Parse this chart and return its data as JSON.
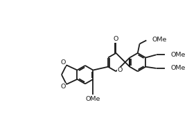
{
  "background": "#ffffff",
  "bond_color": "#1a1a1a",
  "bond_width": 1.3,
  "figsize": [
    2.83,
    1.97
  ],
  "dpi": 100,
  "xlim": [
    0,
    10
  ],
  "ylim": [
    0,
    7
  ]
}
